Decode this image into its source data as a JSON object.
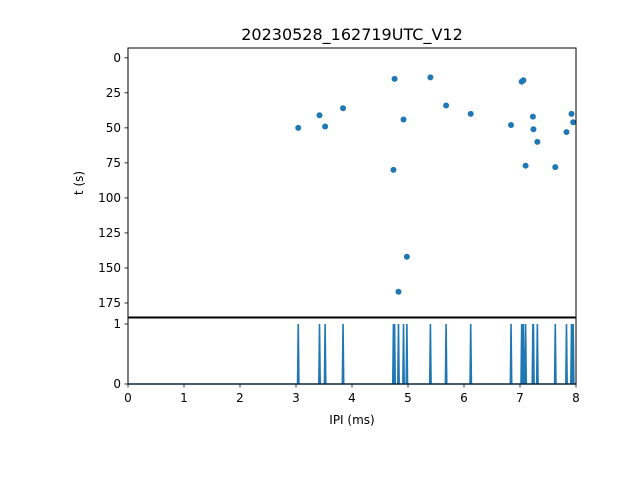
{
  "chart_data": [
    {
      "type": "scatter",
      "title": "20230528_162719UTC_V12",
      "xlabel": "",
      "ylabel": "t (s)",
      "xlim": [
        0,
        8
      ],
      "ylim": [
        185,
        -7
      ],
      "y_inverted": true,
      "yticks": [
        0,
        25,
        50,
        75,
        100,
        125,
        150,
        175
      ],
      "color": "#1f77b4",
      "points": [
        {
          "x": 3.04,
          "y": 50
        },
        {
          "x": 3.42,
          "y": 41
        },
        {
          "x": 3.52,
          "y": 49
        },
        {
          "x": 3.84,
          "y": 36
        },
        {
          "x": 4.74,
          "y": 80
        },
        {
          "x": 4.76,
          "y": 15
        },
        {
          "x": 4.83,
          "y": 167
        },
        {
          "x": 4.92,
          "y": 44
        },
        {
          "x": 4.98,
          "y": 142
        },
        {
          "x": 5.4,
          "y": 14
        },
        {
          "x": 5.68,
          "y": 34
        },
        {
          "x": 6.12,
          "y": 40
        },
        {
          "x": 6.84,
          "y": 48
        },
        {
          "x": 7.03,
          "y": 17
        },
        {
          "x": 7.06,
          "y": 16
        },
        {
          "x": 7.1,
          "y": 77
        },
        {
          "x": 7.23,
          "y": 42
        },
        {
          "x": 7.24,
          "y": 51
        },
        {
          "x": 7.31,
          "y": 60
        },
        {
          "x": 7.63,
          "y": 78
        },
        {
          "x": 7.83,
          "y": 53
        },
        {
          "x": 7.92,
          "y": 40
        },
        {
          "x": 7.95,
          "y": 46
        }
      ]
    },
    {
      "type": "line",
      "title": "",
      "xlabel": "IPI (ms)",
      "ylabel": "",
      "xlim": [
        0,
        8
      ],
      "ylim": [
        0,
        1.1
      ],
      "xticks": [
        0,
        1,
        2,
        3,
        4,
        5,
        6,
        7,
        8
      ],
      "yticks": [
        0,
        1
      ],
      "color": "#1f77b4",
      "spike_positions": [
        3.04,
        3.42,
        3.52,
        3.84,
        4.74,
        4.76,
        4.83,
        4.92,
        4.98,
        5.4,
        5.68,
        6.12,
        6.84,
        7.03,
        7.06,
        7.1,
        7.23,
        7.24,
        7.31,
        7.63,
        7.83,
        7.92,
        7.95
      ],
      "spike_value": 1,
      "baseline": 0
    }
  ]
}
